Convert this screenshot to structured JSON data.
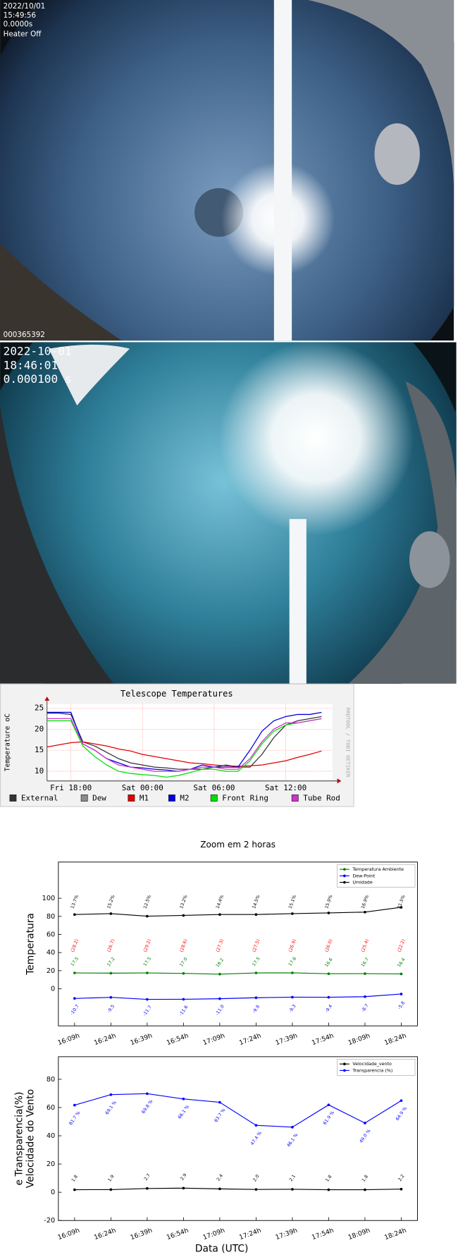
{
  "image_1": {
    "date": "2022/10/01",
    "time": "15:49:56",
    "exposure": "0.0000s",
    "heater": "Heater Off",
    "frame": "000365392"
  },
  "image_2": {
    "date": "2022-10-01",
    "time": "18:46:01",
    "exposure": "0.000100 s"
  },
  "chart_data": [
    {
      "type": "line",
      "title": "Telescope Temperatures",
      "y_label": "Temperature oC",
      "credit": "RRDTOOL / TOBI OETIKER",
      "x": [
        -2,
        -1,
        0,
        1,
        2,
        3,
        4,
        5,
        6,
        7,
        8,
        9,
        10,
        11,
        12,
        13,
        14,
        15,
        16,
        17,
        18,
        19,
        20,
        21
      ],
      "xlim": [
        -2,
        21.9
      ],
      "xticks": [
        {
          "value": 0,
          "label": "Fri 18:00"
        },
        {
          "value": 6,
          "label": "Sat 00:00"
        },
        {
          "value": 12,
          "label": "Sat 06:00"
        },
        {
          "value": 18,
          "label": "Sat 12:00"
        }
      ],
      "ylim": [
        7.7,
        26
      ],
      "yticks": [
        10,
        15,
        20,
        25
      ],
      "grid": true,
      "series": [
        {
          "name": "External",
          "color": "#333333",
          "values": [
            23.8,
            23.8,
            23.5,
            17,
            16,
            14.5,
            13,
            12,
            11.5,
            11,
            10.8,
            10.5,
            10.5,
            10.5,
            11,
            11.5,
            11,
            11,
            14,
            18,
            21,
            22,
            22.5,
            23
          ]
        },
        {
          "name": "Dew",
          "color": "#8c8c8c",
          "values": [
            null,
            null,
            null,
            null,
            null,
            null,
            null,
            null,
            null,
            null,
            null,
            null,
            null,
            null,
            null,
            null,
            null,
            null,
            null,
            null,
            null,
            null,
            null,
            null
          ]
        },
        {
          "name": "M1",
          "color": "#e00000",
          "values": [
            15.8,
            16.3,
            16.8,
            17,
            16.5,
            16,
            15.3,
            14.8,
            14,
            13.5,
            13,
            12.5,
            12,
            11.8,
            11.5,
            11.3,
            11.2,
            11.3,
            11.5,
            12,
            12.5,
            13.3,
            14,
            14.8
          ]
        },
        {
          "name": "M2",
          "color": "#0000e0",
          "values": [
            24,
            24,
            24,
            16.5,
            15,
            13,
            12,
            11,
            10.8,
            10.5,
            10.3,
            10,
            10.5,
            11.5,
            11,
            11,
            11,
            15,
            19.5,
            22,
            23,
            23.5,
            23.5,
            24
          ]
        },
        {
          "name": "Front Ring",
          "color": "#00e000",
          "values": [
            22,
            22,
            22,
            16,
            13.5,
            11.5,
            10,
            9.5,
            9.2,
            9,
            8.6,
            9,
            9.7,
            10.5,
            10.5,
            10,
            10,
            12.5,
            16.5,
            19.5,
            21,
            21.5,
            22,
            22.5
          ]
        },
        {
          "name": "Tube Rod",
          "color": "#d030d0",
          "values": [
            22.5,
            22.5,
            22.5,
            16.5,
            15,
            13,
            11.5,
            11,
            10.5,
            10,
            10,
            10,
            10.5,
            11,
            11,
            10.5,
            10.5,
            13,
            17,
            20,
            21.5,
            21.5,
            22,
            22.5
          ]
        }
      ]
    },
    {
      "type": "line",
      "title": "Zoom em 2 horas",
      "y_label": "Temperatura",
      "legend": "upper right",
      "categories": [
        "16:09h",
        "16:24h",
        "16:39h",
        "16:54h",
        "17:09h",
        "17:24h",
        "17:39h",
        "17:54h",
        "18:09h",
        "18:24h"
      ],
      "ylim": [
        -41,
        140
      ],
      "yticks": [
        0,
        20,
        40,
        60,
        80,
        100
      ],
      "series": [
        {
          "name": "Temperatura Ambiente",
          "color": "#008000",
          "values": [
            17.5,
            17.2,
            17.5,
            17.0,
            16.2,
            17.5,
            17.6,
            16.6,
            16.7,
            16.4
          ],
          "value_labels": [
            "17.5",
            "17.2",
            "17.5",
            "17.0",
            "16.2",
            "17.5",
            "17.6",
            "16.6",
            "16.7",
            "16.4"
          ]
        },
        {
          "name": "Dew-Point",
          "color": "#0000ff",
          "values": [
            -10.7,
            -9.5,
            -11.7,
            -11.6,
            -11.0,
            -9.9,
            -9.3,
            -9.4,
            -8.7,
            -5.8
          ],
          "value_labels": [
            "-10.7",
            "-9.5",
            "-11.7",
            "-11.6",
            "-11.0",
            "-9.9",
            "-9.3",
            "-9.4",
            "-8.7",
            "-5.8"
          ]
        },
        {
          "name": "Umidade",
          "color": "#000000",
          "values": [
            82,
            83,
            80.2,
            81,
            82,
            82,
            83,
            83.8,
            84.7,
            90
          ]
        }
      ],
      "annotations": [
        {
          "color": "#000000",
          "labels": [
            "13.7%",
            "15.2%",
            "12.5%",
            "13.2%",
            "14.4%",
            "14.5%",
            "15.1%",
            "15.9%",
            "16.9%",
            "21.5%"
          ]
        },
        {
          "color": "#ff0000",
          "labels": [
            "(28.2)",
            "(26.7)",
            "(29.2)",
            "(28.6)",
            "(27.3)",
            "(27.5)",
            "(26.9)",
            "(26.0)",
            "(25.4)",
            "(22.2)"
          ]
        }
      ]
    },
    {
      "type": "line",
      "x_label": "Data (UTC)",
      "y_label": [
        "Velocidade do Vento",
        "e Transparencia(%)"
      ],
      "legend": "upper right",
      "categories": [
        "16:09h",
        "16:24h",
        "16:39h",
        "16:54h",
        "17:09h",
        "17:24h",
        "17:39h",
        "17:54h",
        "18:09h",
        "18:24h"
      ],
      "ylim": [
        -20,
        96
      ],
      "yticks": [
        -20,
        0,
        20,
        40,
        60,
        80
      ],
      "series": [
        {
          "name": "Velocidade_vento",
          "color": "#000000",
          "values": [
            1.8,
            1.9,
            2.7,
            2.9,
            2.4,
            2.0,
            2.1,
            1.8,
            1.8,
            2.2
          ],
          "value_labels": [
            "1.8",
            "1.9",
            "2.7",
            "2.9",
            "2.4",
            "2.0",
            "2.1",
            "1.8",
            "1.8",
            "2.2"
          ]
        },
        {
          "name": "Transparencia (%)",
          "color": "#0000ff",
          "values": [
            61.7,
            69.1,
            69.8,
            66.1,
            63.7,
            47.4,
            46.1,
            61.9,
            49.0,
            64.9
          ],
          "value_labels": [
            "61.7 %",
            "69.1 %",
            "69.8 %",
            "66.1 %",
            "63.7 %",
            "47.4 %",
            "46.1 %",
            "61.9 %",
            "49.0 %",
            "64.9 %"
          ]
        }
      ]
    }
  ]
}
